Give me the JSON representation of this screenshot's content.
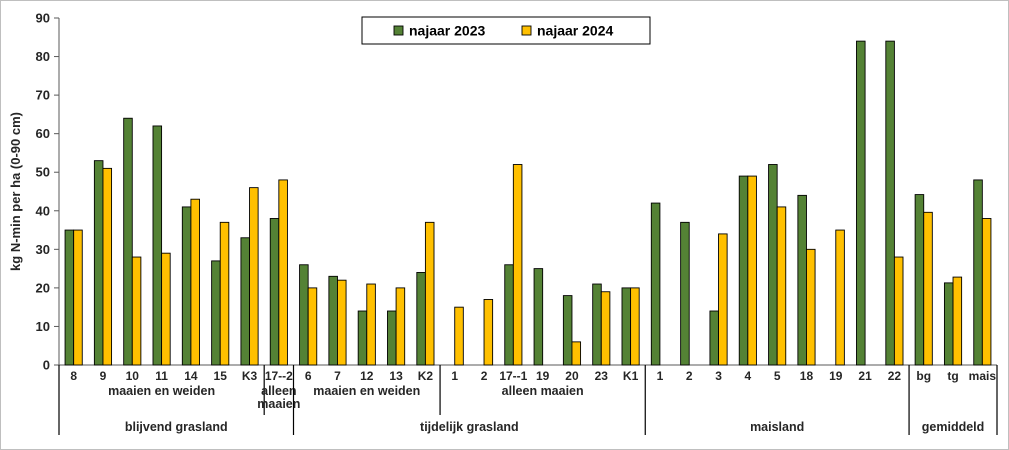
{
  "chart_data": {
    "type": "bar",
    "ylabel": "kg N-min per ha (0-90 cm)",
    "ylim": [
      0,
      90
    ],
    "yticks": [
      0,
      10,
      20,
      30,
      40,
      50,
      60,
      70,
      80,
      90
    ],
    "grid": false,
    "legend_position": "top-center",
    "colors": {
      "najaar 2023": "#548235",
      "najaar 2024": "#FFC000"
    },
    "categories": [
      "8",
      "9",
      "10",
      "11",
      "14",
      "15",
      "K3",
      "17--2",
      "6",
      "7",
      "12",
      "13",
      "K2",
      "1",
      "2",
      "17--1",
      "19",
      "20",
      "23",
      "K1",
      "1",
      "2",
      "3",
      "4",
      "5",
      "18",
      "19",
      "21",
      "22",
      "bg",
      "tg",
      "mais"
    ],
    "series": [
      {
        "name": "najaar 2023",
        "values": [
          35,
          53,
          64,
          62,
          41,
          27,
          33,
          38,
          26,
          23,
          14,
          14,
          24,
          null,
          null,
          26,
          25,
          18,
          21,
          20,
          42,
          37,
          14,
          49,
          52,
          44,
          null,
          84,
          84,
          44.2,
          21.3,
          48
        ]
      },
      {
        "name": "najaar 2024",
        "values": [
          35,
          51,
          28,
          29,
          43,
          37,
          46,
          48,
          20,
          22,
          21,
          20,
          37,
          15,
          17,
          52,
          null,
          6,
          19,
          20,
          null,
          null,
          34,
          49,
          41,
          30,
          35,
          null,
          28,
          39.6,
          22.8,
          38
        ]
      }
    ],
    "subgroups": [
      {
        "label": "maaien en weiden",
        "start": 0,
        "end": 6
      },
      {
        "label": "alleen maaien",
        "start": 7,
        "end": 7
      },
      {
        "label": "maaien en weiden",
        "start": 8,
        "end": 12
      },
      {
        "label": "alleen maaien",
        "start": 13,
        "end": 19
      }
    ],
    "groups": [
      {
        "label": "blijvend grasland",
        "start": 0,
        "end": 7
      },
      {
        "label": "tijdelijk grasland",
        "start": 8,
        "end": 19
      },
      {
        "label": "maisland",
        "start": 20,
        "end": 28
      },
      {
        "label": "gemiddeld",
        "start": 29,
        "end": 31
      }
    ]
  }
}
